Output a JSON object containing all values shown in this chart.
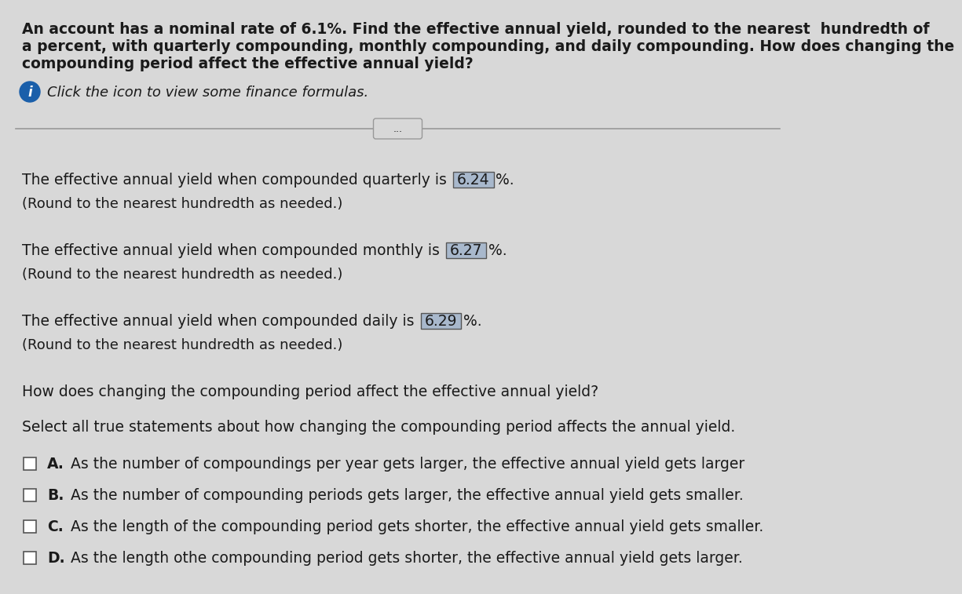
{
  "bg_color": "#d8d8d8",
  "header_text_line1": "An account has a nominal rate of 6.1%. Find the effective annual yield, rounded to the nearest  hundredth of",
  "header_text_line2": "a percent, with quarterly compounding, monthly compounding, and daily compounding. How does changing the",
  "header_text_line3": "compounding period affect the effective annual yield?",
  "info_text": "Click the icon to view some finance formulas.",
  "divider_button_text": "...",
  "line1_prefix": "The effective annual yield when compounded quarterly is ",
  "line1_value": "6.24",
  "line1_suffix": "%.",
  "line1_sub": "(Round to the nearest hundredth as needed.)",
  "line2_prefix": "The effective annual yield when compounded monthly is ",
  "line2_value": "6.27",
  "line2_suffix": "%.",
  "line2_sub": "(Round to the nearest hundredth as needed.)",
  "line3_prefix": "The effective annual yield when compounded daily is ",
  "line3_value": "6.29",
  "line3_suffix": "%.",
  "line3_sub": "(Round to the nearest hundredth as needed.)",
  "question1": "How does changing the compounding period affect the effective annual yield?",
  "question2": "Select all true statements about how changing the compounding period affects the annual yield.",
  "optA_label": "A.",
  "optA_text": "  As the number of compoundings per year gets larger, the effective annual yield gets larger",
  "optB_label": "B.",
  "optB_text": "  As the number of compounding periods gets larger, the effective annual yield gets smaller.",
  "optC_label": "C.",
  "optC_text": "  As the length of the compounding period gets shorter, the effective annual yield gets smaller.",
  "optD_label": "D.",
  "optD_text": "  As the length o⁠the compounding period gets shorter, the effective annual yield gets larger.",
  "text_color": "#1a1a1a",
  "box_fill_color": "#a8b8cc",
  "box_edge_color": "#555555",
  "checkbox_fill": "#ffffff",
  "checkbox_edge": "#555555",
  "info_icon_color": "#1a5faa",
  "divider_color": "#999999",
  "font_size_header": 13.5,
  "font_size_body": 13.5,
  "font_size_info": 13.0,
  "font_size_sub": 13.0
}
